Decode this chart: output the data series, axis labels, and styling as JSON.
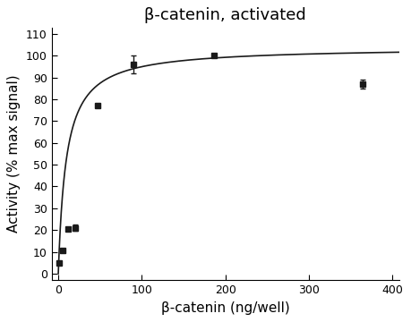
{
  "title": "β-catenin, activated",
  "xlabel": "β-catenin (ng/well)",
  "ylabel": "Activity (% max signal)",
  "xlim": [
    -8,
    408
  ],
  "ylim": [
    -3,
    113
  ],
  "xticks": [
    0,
    100,
    200,
    300,
    400
  ],
  "yticks": [
    0,
    10,
    20,
    30,
    40,
    50,
    60,
    70,
    80,
    90,
    100,
    110
  ],
  "data_x": [
    1.5,
    5.5,
    12.0,
    20.0,
    47.0,
    90.0,
    187.0,
    365.0
  ],
  "data_y": [
    5.0,
    10.5,
    20.5,
    21.0,
    77.0,
    96.0,
    100.0,
    87.0
  ],
  "data_yerr": [
    0.5,
    0.5,
    1.0,
    1.5,
    0.5,
    4.0,
    0.5,
    2.0
  ],
  "curve_Vmax": 104.0,
  "curve_Km": 9.5,
  "marker_color": "#1a1a1a",
  "line_color": "#1a1a1a",
  "marker_size": 4.5,
  "title_fontsize": 13,
  "label_fontsize": 11,
  "tick_fontsize": 9,
  "background_color": "#ffffff"
}
